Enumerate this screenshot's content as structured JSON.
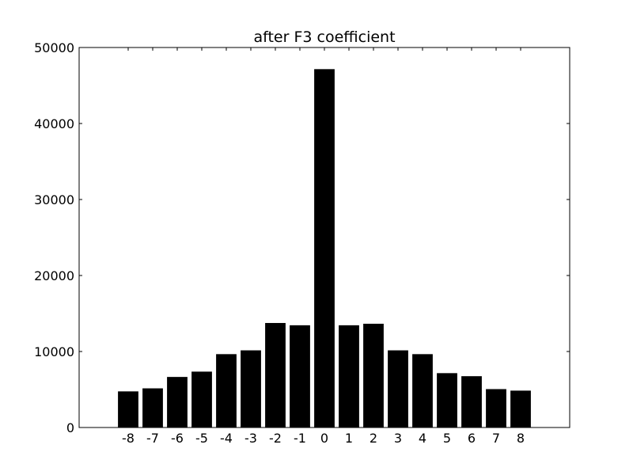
{
  "chart_data": {
    "type": "bar",
    "title": "after F3 coefficient",
    "xlabel": "",
    "ylabel": "",
    "categories": [
      "-8",
      "-7",
      "-6",
      "-5",
      "-4",
      "-3",
      "-2",
      "-1",
      "0",
      "1",
      "2",
      "3",
      "4",
      "5",
      "6",
      "7",
      "8"
    ],
    "values": [
      4700,
      5100,
      6600,
      7300,
      9600,
      10100,
      13700,
      13400,
      47100,
      13400,
      13600,
      10100,
      9600,
      7100,
      6700,
      5000,
      4800
    ],
    "ylim": [
      0,
      50000
    ],
    "y_ticks": [
      "0",
      "10000",
      "20000",
      "30000",
      "40000",
      "50000"
    ],
    "xlim": [
      -10,
      10
    ],
    "bar_color": "#000000",
    "grid": false,
    "legend": "none"
  }
}
